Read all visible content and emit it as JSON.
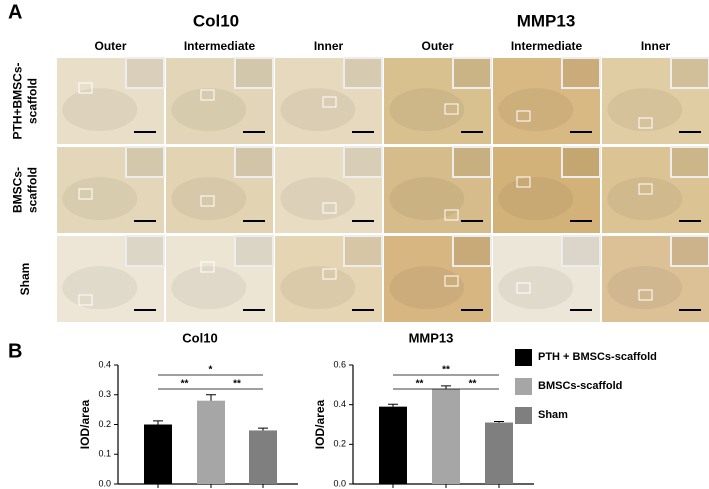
{
  "panel_labels": [
    "A",
    "B"
  ],
  "figure_a": {
    "groups": [
      "Col10",
      "MMP13"
    ],
    "columns": [
      "Outer",
      "Intermediate",
      "Inner",
      "Outer",
      "Intermediate",
      "Inner"
    ],
    "rows": [
      [
        "PTH+BMSCs-",
        "scaffold"
      ],
      [
        "BMSCs-",
        "scaffold"
      ],
      [
        "Sham"
      ]
    ]
  },
  "legend": [
    {
      "name": "PTH + BMSCs-scaffold",
      "color": "#000000"
    },
    {
      "name": "BMSCs-scaffold",
      "color": "#a6a6a6"
    },
    {
      "name": "Sham",
      "color": "#7f7f7f"
    }
  ],
  "chart_data": [
    {
      "type": "bar",
      "title": "Col10",
      "y_label": "IOD/area",
      "values": [
        0.2,
        0.28,
        0.18
      ],
      "errors": [
        0.012,
        0.02,
        0.008
      ],
      "ylim": [
        0,
        0.4
      ],
      "yticks": [
        {
          "value": 0,
          "label": "0.0"
        },
        0.1,
        0.2,
        0.3,
        0.4
      ],
      "annotations": [
        "**",
        "*",
        "**"
      ]
    },
    {
      "type": "bar",
      "title": "MMP13",
      "y_label": "IOD/area",
      "values": [
        0.39,
        0.48,
        0.31
      ],
      "errors": [
        0.012,
        0.015,
        0.005
      ],
      "ylim": [
        0,
        0.6
      ],
      "yticks": [
        {
          "value": 0,
          "label": "0.0"
        },
        0.2,
        0.4,
        0.6
      ],
      "annotations": [
        "**",
        "**",
        "**"
      ]
    }
  ]
}
